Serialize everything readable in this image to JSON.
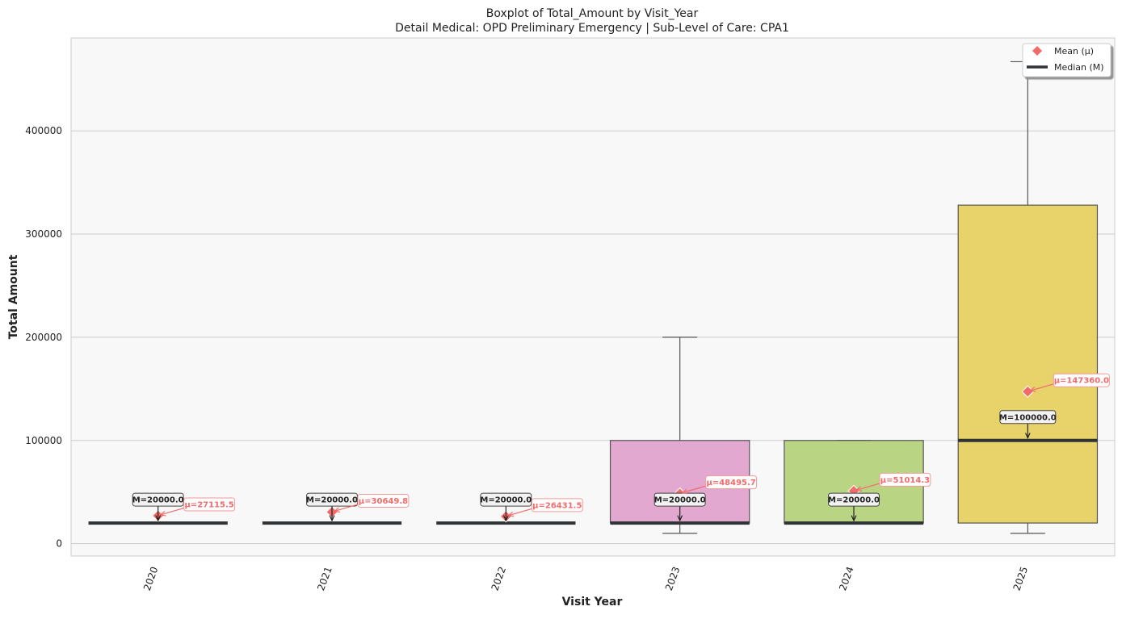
{
  "chart_data": {
    "type": "box",
    "title": "Boxplot of Total_Amount by Visit_Year",
    "subtitle": "Detail Medical: OPD Preliminary Emergency | Sub-Level of Care: CPA1",
    "xlabel": "Visit Year",
    "ylabel": "Total Amount",
    "ylim": [
      -12000,
      490000
    ],
    "yticks": [
      0,
      100000,
      200000,
      300000,
      400000
    ],
    "ytick_labels": [
      "0",
      "100000",
      "200000",
      "300000",
      "400000"
    ],
    "grid": "horizontal",
    "legend": {
      "position": "top-right",
      "entries": [
        {
          "label": "Mean (μ)",
          "marker": "diamond",
          "color": "#f26b6b"
        },
        {
          "label": "Median (M)",
          "marker": "line",
          "color": "#2f3336"
        }
      ]
    },
    "categories": [
      "2020",
      "2021",
      "2022",
      "2023",
      "2024",
      "2025"
    ],
    "boxes": [
      {
        "category": "2020",
        "whisker_low": 20000,
        "q1": 20000,
        "median": 20000,
        "q3": 20000,
        "whisker_high": 20000,
        "mean": 27115.5,
        "color": "#e8e8e8",
        "median_label": "M=20000.0",
        "mean_label": "μ=27115.5"
      },
      {
        "category": "2021",
        "whisker_low": 20000,
        "q1": 20000,
        "median": 20000,
        "q3": 20000,
        "whisker_high": 20000,
        "mean": 30649.8,
        "color": "#e8e8e8",
        "median_label": "M=20000.0",
        "mean_label": "μ=30649.8"
      },
      {
        "category": "2022",
        "whisker_low": 20000,
        "q1": 20000,
        "median": 20000,
        "q3": 20000,
        "whisker_high": 20000,
        "mean": 26431.5,
        "color": "#e8e8e8",
        "median_label": "M=20000.0",
        "mean_label": "μ=26431.5"
      },
      {
        "category": "2023",
        "whisker_low": 10000,
        "q1": 20000,
        "median": 20000,
        "q3": 100000,
        "whisker_high": 200000,
        "mean": 48495.7,
        "color": "#e2a8cf",
        "median_label": "M=20000.0",
        "mean_label": "μ=48495.7"
      },
      {
        "category": "2024",
        "whisker_low": 20000,
        "q1": 20000,
        "median": 20000,
        "q3": 100000,
        "whisker_high": 100000,
        "mean": 51014.3,
        "color": "#b9d584",
        "median_label": "M=20000.0",
        "mean_label": "μ=51014.3"
      },
      {
        "category": "2025",
        "whisker_low": 10000,
        "q1": 20000,
        "median": 100000,
        "q3": 328000,
        "whisker_high": 467000,
        "mean": 147360.0,
        "color": "#e8d26a",
        "median_label": "M=100000.0",
        "mean_label": "μ=147360.0"
      }
    ],
    "colors": {
      "mean_marker": "#f26b6b",
      "median_line": "#2f3336",
      "box_edge": "#555555",
      "plot_background": "#f8f8f8",
      "grid": "#cccccc"
    }
  }
}
